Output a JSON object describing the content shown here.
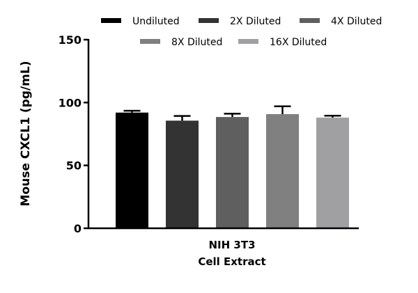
{
  "chart_data": {
    "type": "bar",
    "title": "",
    "ylabel": "Mouse  CXCL1 (pg/mL)",
    "xlabel": [
      "NIH 3T3",
      "Cell Extract"
    ],
    "ylim": [
      0,
      150
    ],
    "yticks": [
      0,
      50,
      100,
      150
    ],
    "grid": false,
    "legend_placement": "top",
    "series": [
      {
        "name": "Undiluted",
        "value": 92,
        "error": 1.5,
        "color": "#000000"
      },
      {
        "name": "2X Diluted",
        "value": 85.6,
        "error": 3.7,
        "color": "#333333"
      },
      {
        "name": "4X Diluted",
        "value": 88.5,
        "error": 2.6,
        "color": "#5f5f5f"
      },
      {
        "name": "8X Diluted",
        "value": 90.8,
        "error": 6.2,
        "color": "#808080"
      },
      {
        "name": "16X Diluted",
        "value": 88,
        "error": 1.5,
        "color": "#a0a0a2"
      }
    ]
  }
}
